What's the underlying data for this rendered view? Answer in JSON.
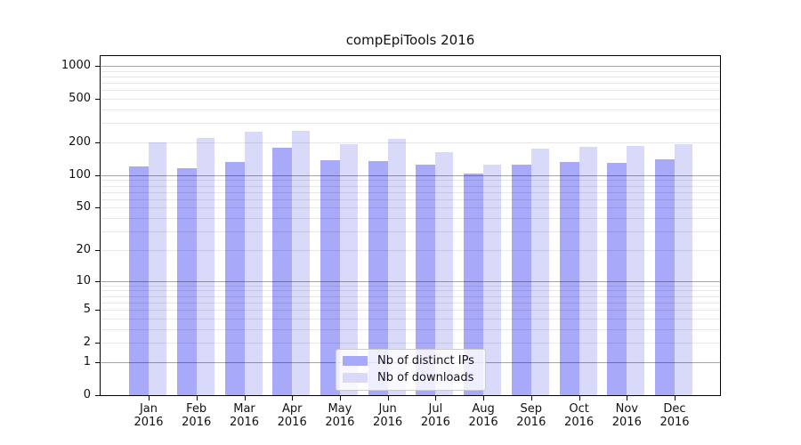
{
  "figure": {
    "title": "compEpiTools 2016"
  },
  "chart_data": {
    "type": "bar",
    "title": "compEpiTools 2016",
    "categories": [
      "Jan",
      "Feb",
      "Mar",
      "Apr",
      "May",
      "Jun",
      "Jul",
      "Aug",
      "Sep",
      "Oct",
      "Nov",
      "Dec"
    ],
    "year_label": "2016",
    "series": [
      {
        "name": "Nb of distinct IPs",
        "color": "#a9a9f9",
        "values": [
          121,
          117,
          133,
          180,
          138,
          135,
          126,
          103,
          125,
          132,
          129,
          140
        ]
      },
      {
        "name": "Nb of downloads",
        "color": "#d9d9f9",
        "values": [
          200,
          218,
          252,
          256,
          194,
          216,
          163,
          126,
          176,
          181,
          187,
          193
        ]
      }
    ],
    "yscale": "log1p",
    "yticks": [
      0,
      1,
      2,
      5,
      10,
      20,
      50,
      100,
      200,
      500,
      1000
    ],
    "grid_major": [
      1,
      10,
      100,
      1000
    ],
    "ylim": [
      0,
      1250
    ],
    "grid": "horizontal",
    "legend_position": "inside-bottom-center"
  }
}
